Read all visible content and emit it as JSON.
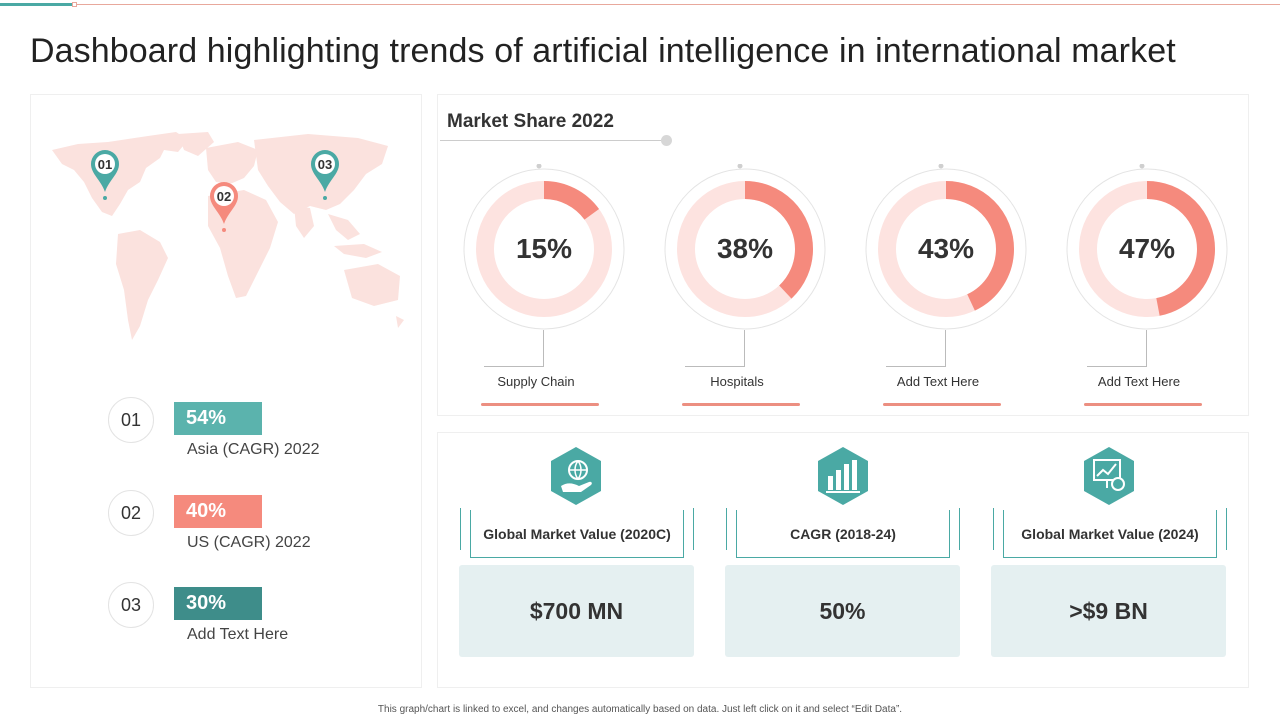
{
  "title": "Dashboard highlighting trends of artificial intelligence in international market",
  "colors": {
    "teal": "#4aa9a4",
    "salmon": "#f58a7d",
    "dark_teal": "#3e8d8a",
    "light_pink": "#fde3e0",
    "value_bg": "#e5f0f1"
  },
  "map": {
    "icon": "world-map",
    "pins": [
      {
        "label": "01",
        "color": "#4aa9a4"
      },
      {
        "label": "02",
        "color": "#f58a7d"
      },
      {
        "label": "03",
        "color": "#4aa9a4"
      }
    ]
  },
  "stats": [
    {
      "num": "01",
      "value": "54%",
      "label": "Asia (CAGR) 2022",
      "color": "#5bb3ad"
    },
    {
      "num": "02",
      "value": "40%",
      "label": "US (CAGR) 2022",
      "color": "#f58a7d"
    },
    {
      "num": "03",
      "value": "30%",
      "label": "Add Text Here",
      "color": "#3e8d8a"
    }
  ],
  "market_share": {
    "title": "Market Share 2022",
    "items": [
      {
        "value": 15,
        "display": "15%",
        "label": "Supply Chain"
      },
      {
        "value": 38,
        "display": "38%",
        "label": "Hospitals"
      },
      {
        "value": 43,
        "display": "43%",
        "label": "Add Text Here"
      },
      {
        "value": 47,
        "display": "47%",
        "label": "Add Text Here"
      }
    ]
  },
  "kpis": [
    {
      "icon": "globe-hand-icon",
      "heading": "Global Market Value (2020C)",
      "value": "$700 MN"
    },
    {
      "icon": "bar-chart-icon",
      "heading": "CAGR (2018-24)",
      "value": "50%"
    },
    {
      "icon": "presentation-globe-icon",
      "heading": "Global Market Value (2024)",
      "value": ">$9 BN"
    }
  ],
  "footnote": "This graph/chart is linked to excel, and changes automatically based on data. Just left click on it and select “Edit Data”."
}
